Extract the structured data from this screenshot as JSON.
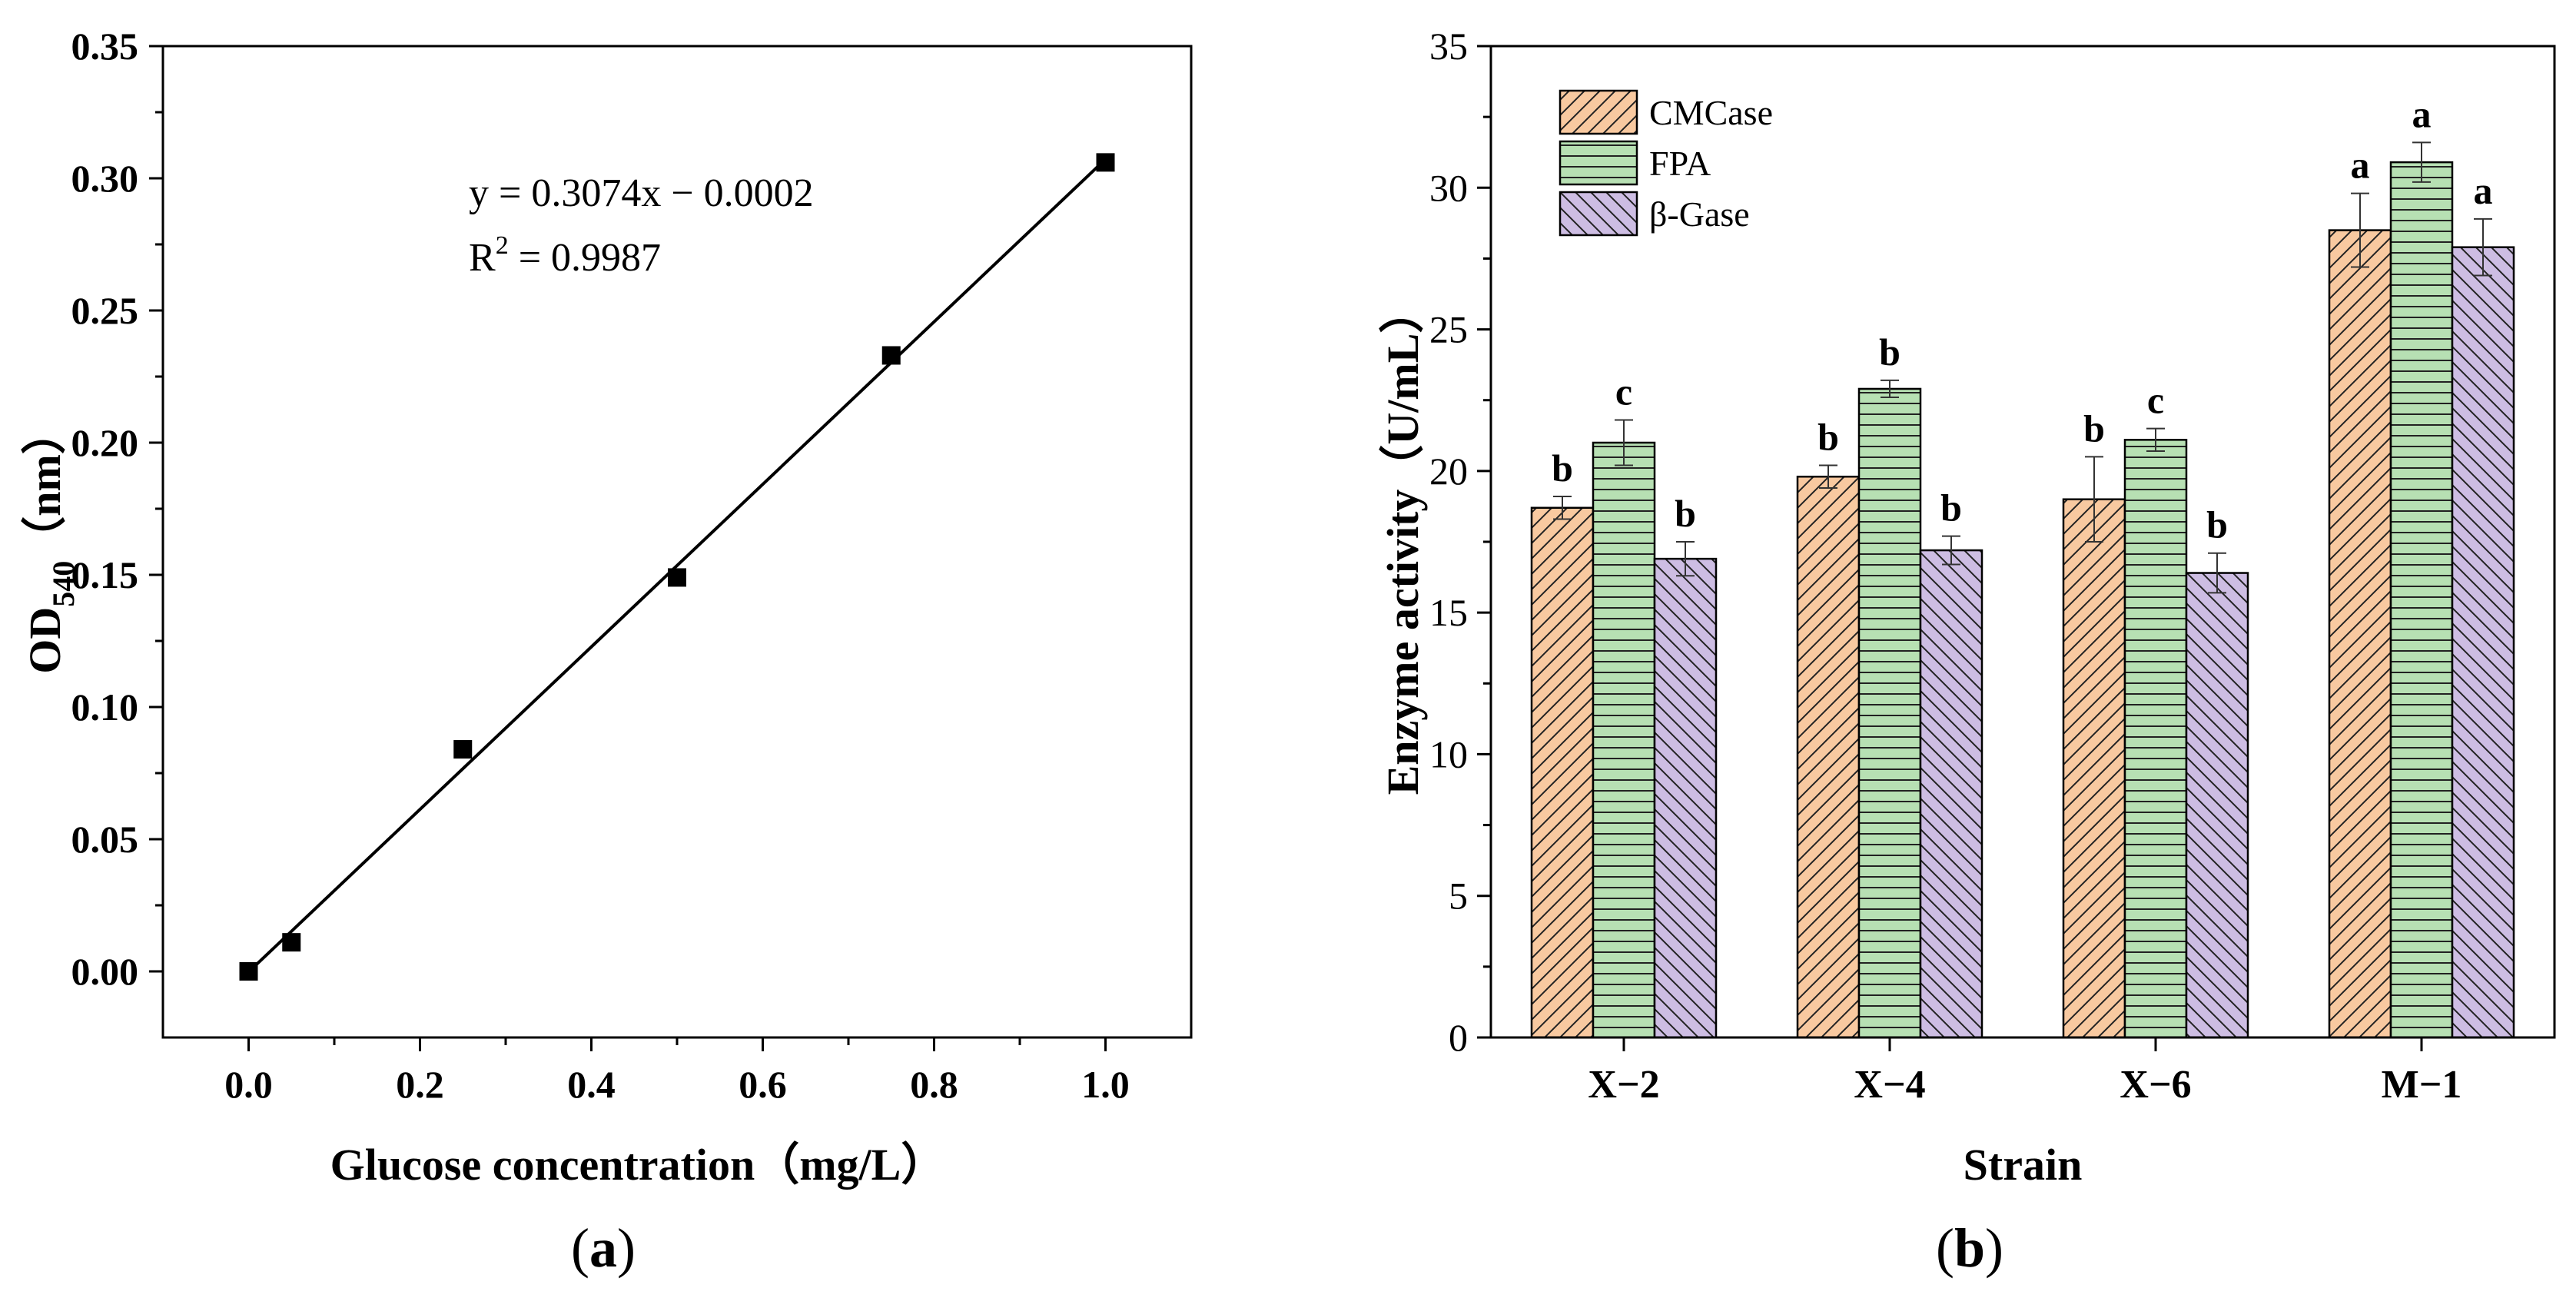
{
  "chart_data": [
    {
      "type": "scatter",
      "panel_label": "(a)",
      "panel_letter": "a",
      "xlabel": "Glucose concentration（mg/L）",
      "ylabel_main": "OD",
      "ylabel_sub": "540",
      "ylabel_unit": "（nm）",
      "xlim": [
        -0.1,
        1.1
      ],
      "ylim": [
        -0.025,
        0.35
      ],
      "x_ticks": [
        0.0,
        0.2,
        0.4,
        0.6,
        0.8,
        1.0
      ],
      "x_tick_labels": [
        "0.0",
        "0.2",
        "0.4",
        "0.6",
        "0.8",
        "1.0"
      ],
      "y_ticks": [
        0.0,
        0.05,
        0.1,
        0.15,
        0.2,
        0.25,
        0.3,
        0.35
      ],
      "y_tick_labels": [
        "0.00",
        "0.05",
        "0.10",
        "0.15",
        "0.20",
        "0.25",
        "0.30",
        "0.35"
      ],
      "x": [
        0.0,
        0.05,
        0.25,
        0.5,
        0.75,
        1.0
      ],
      "y": [
        0.0,
        0.011,
        0.084,
        0.149,
        0.233,
        0.306
      ],
      "fit": {
        "slope": 0.3074,
        "intercept": -0.0002,
        "x_range": [
          0.0,
          1.0
        ]
      },
      "equation": "y = 0.3074x − 0.0002",
      "r2_prefix": "R",
      "r2_sup": "2",
      "r2_value": " = 0.9987"
    },
    {
      "type": "bar",
      "panel_label": "(b)",
      "panel_letter": "b",
      "xlabel": "Strain",
      "ylabel": "Enzyme activity（U/mL）",
      "ylim": [
        0,
        35
      ],
      "y_ticks": [
        0,
        5,
        10,
        15,
        20,
        25,
        30,
        35
      ],
      "categories": [
        "X−2",
        "X−4",
        "X−6",
        "M−1"
      ],
      "series": [
        {
          "name": "CMCase",
          "color": "#f8c9a0",
          "pattern": "diagonal",
          "values": [
            18.7,
            19.8,
            19.0,
            28.5
          ],
          "errors": [
            0.4,
            0.4,
            1.5,
            1.3
          ],
          "labels": [
            "b",
            "b",
            "b",
            "a"
          ]
        },
        {
          "name": "FPA",
          "color": "#b7e0b3",
          "pattern": "horizontal",
          "values": [
            21.0,
            22.9,
            21.1,
            30.9
          ],
          "errors": [
            0.8,
            0.3,
            0.4,
            0.7
          ],
          "labels": [
            "c",
            "b",
            "c",
            "a"
          ]
        },
        {
          "name": "β-Gase",
          "color": "#cdbde3",
          "pattern": "antidiagonal",
          "values": [
            16.9,
            17.2,
            16.4,
            27.9
          ],
          "errors": [
            0.6,
            0.5,
            0.7,
            1.0
          ],
          "labels": [
            "b",
            "b",
            "b",
            "a"
          ]
        }
      ]
    }
  ]
}
